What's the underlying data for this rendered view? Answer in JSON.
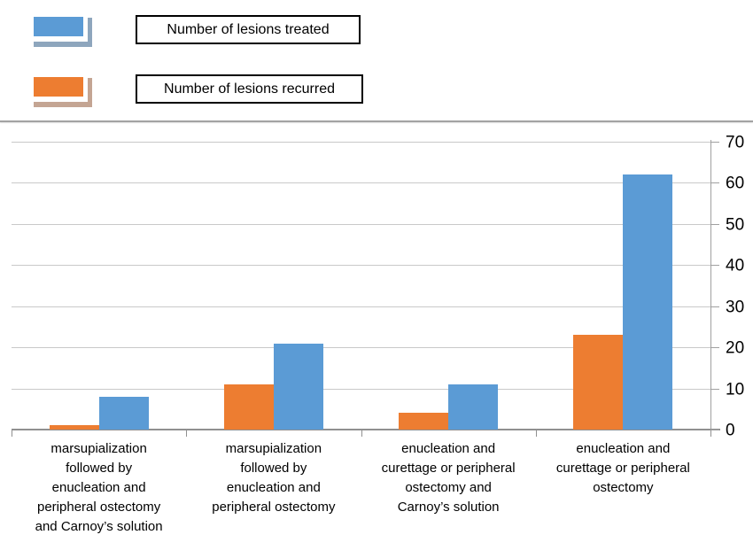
{
  "legend": {
    "items": [
      {
        "id": "treated",
        "label": "Number of lesions treated",
        "swatch_color": "#5b9bd5",
        "swatch_shadow_color": "#8ea6bd"
      },
      {
        "id": "recurred",
        "label": "Number of lesions recurred",
        "swatch_color": "#ed7d31",
        "swatch_shadow_color": "#c4a593"
      }
    ]
  },
  "chart_data": {
    "type": "bar",
    "title": "",
    "xlabel": "",
    "ylabel": "",
    "categories": [
      "marsupialization\nfollowed by\nenucleation and\nperipheral ostectomy\nand Carnoy’s solution",
      "marsupialization\nfollowed by\nenucleation and\nperipheral ostectomy",
      "enucleation and\ncurettage or peripheral\nostectomy and\nCarnoy’s solution",
      "enucleation and\ncurettage or peripheral\nostectomy"
    ],
    "series": [
      {
        "name": "Number of lesions recurred",
        "color": "#ed7d31",
        "values": [
          1,
          11,
          4,
          23
        ]
      },
      {
        "name": "Number of lesions treated",
        "color": "#5b9bd5",
        "values": [
          8,
          21,
          11,
          62
        ]
      }
    ],
    "bar_order_in_group": [
      "Number of lesions recurred",
      "Number of lesions treated"
    ],
    "ylim": [
      0,
      70
    ],
    "ytick_labels": [
      "70",
      "60",
      "50",
      "40",
      "30",
      "20",
      "10",
      "0"
    ],
    "ytick_step": 10,
    "grid": true,
    "value_axis_side": "right",
    "legend_position": "top-left"
  },
  "colors": {
    "gridline": "#c9c9c9",
    "axis": "#909090",
    "text": "#000000",
    "background": "#ffffff"
  }
}
